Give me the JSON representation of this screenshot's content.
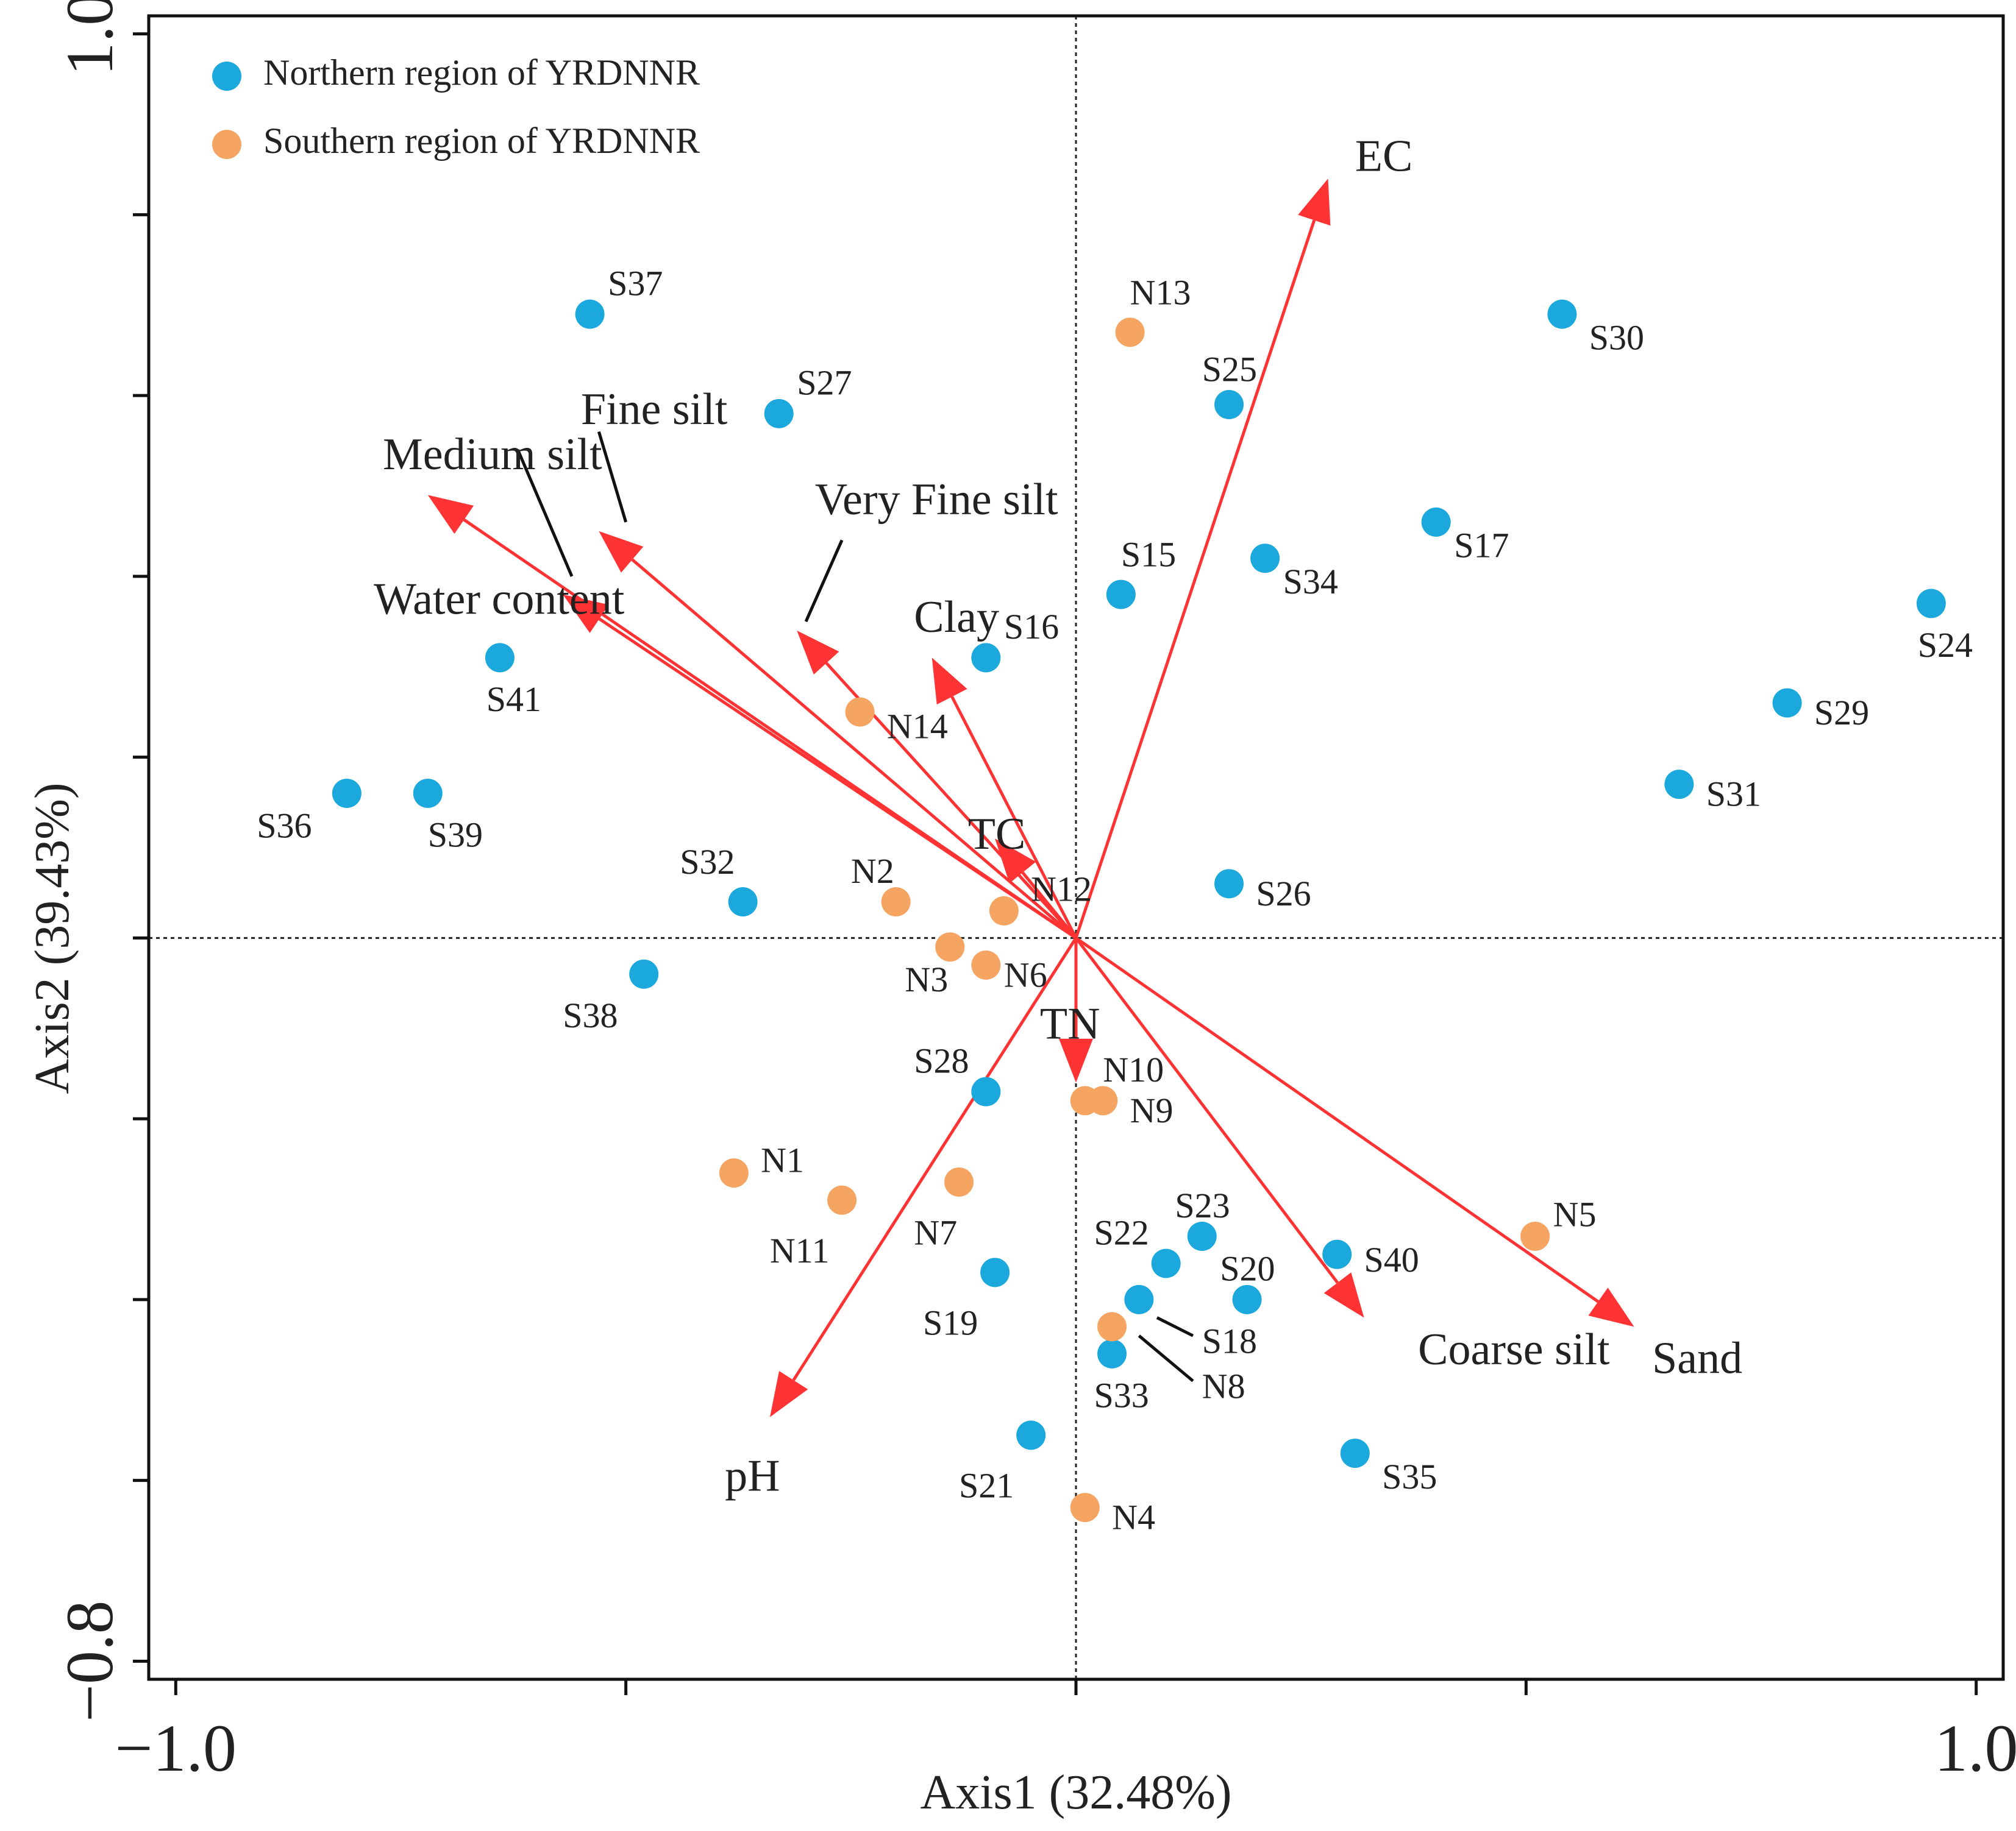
{
  "chart_data": {
    "type": "scatter",
    "title": "",
    "xlabel": "Axis1 (32.48%)",
    "ylabel": "Axis2 (39.43%)",
    "xlim": [
      -1.03,
      1.03
    ],
    "ylim": [
      -0.82,
      1.02
    ],
    "x_ticks": [
      -1.0,
      -0.5,
      0.0,
      0.5,
      1.0
    ],
    "x_tick_labels": [
      "−1.0",
      "",
      "",
      "",
      "1.0"
    ],
    "y_ticks": [
      1.0,
      0.8,
      0.6,
      0.4,
      0.2,
      0.0,
      -0.2,
      -0.4,
      -0.6,
      -0.8
    ],
    "y_tick_labels": [
      "1.0",
      "",
      "",
      "",
      "",
      "",
      "",
      "",
      "",
      "−0.8"
    ],
    "grid": false,
    "reference_lines": {
      "x": 0,
      "y": 0
    },
    "legend": {
      "position": "top-left",
      "entries": [
        {
          "label": "Northern region of YRDNNR",
          "color": "#1ba8dd"
        },
        {
          "label": "Southern region of YRDNNR",
          "color": "#f5a462"
        }
      ]
    },
    "series": [
      {
        "name": "Northern region of YRDNNR",
        "color": "#1ba8dd",
        "points": [
          {
            "label": "S37",
            "x": -0.54,
            "y": 0.69,
            "lx": 0.02,
            "ly": 0.03
          },
          {
            "label": "S27",
            "x": -0.33,
            "y": 0.58,
            "lx": 0.02,
            "ly": 0.03
          },
          {
            "label": "S41",
            "x": -0.64,
            "y": 0.31,
            "lx": -0.015,
            "ly": -0.05
          },
          {
            "label": "S36",
            "x": -0.81,
            "y": 0.16,
            "lx": -0.1,
            "ly": -0.04
          },
          {
            "label": "S39",
            "x": -0.72,
            "y": 0.16,
            "lx": 0.0,
            "ly": -0.05
          },
          {
            "label": "S32",
            "x": -0.37,
            "y": 0.04,
            "lx": -0.07,
            "ly": 0.04
          },
          {
            "label": "S38",
            "x": -0.48,
            "y": -0.04,
            "lx": -0.09,
            "ly": -0.05
          },
          {
            "label": "S16",
            "x": -0.1,
            "y": 0.31,
            "lx": 0.02,
            "ly": 0.03
          },
          {
            "label": "S15",
            "x": 0.05,
            "y": 0.38,
            "lx": 0.0,
            "ly": 0.04
          },
          {
            "label": "S25",
            "x": 0.17,
            "y": 0.59,
            "lx": -0.03,
            "ly": 0.035
          },
          {
            "label": "S34",
            "x": 0.21,
            "y": 0.42,
            "lx": 0.02,
            "ly": -0.03
          },
          {
            "label": "S17",
            "x": 0.4,
            "y": 0.46,
            "lx": 0.02,
            "ly": -0.03
          },
          {
            "label": "S30",
            "x": 0.54,
            "y": 0.69,
            "lx": 0.03,
            "ly": -0.03
          },
          {
            "label": "S24",
            "x": 0.95,
            "y": 0.37,
            "lx": -0.015,
            "ly": -0.05
          },
          {
            "label": "S29",
            "x": 0.79,
            "y": 0.26,
            "lx": 0.03,
            "ly": -0.015
          },
          {
            "label": "S31",
            "x": 0.67,
            "y": 0.17,
            "lx": 0.03,
            "ly": -0.015
          },
          {
            "label": "S26",
            "x": 0.17,
            "y": 0.06,
            "lx": 0.03,
            "ly": -0.015
          },
          {
            "label": "S28",
            "x": -0.1,
            "y": -0.17,
            "lx": -0.08,
            "ly": 0.03
          },
          {
            "label": "S19",
            "x": -0.09,
            "y": -0.37,
            "lx": -0.08,
            "ly": -0.06
          },
          {
            "label": "S21",
            "x": -0.05,
            "y": -0.55,
            "lx": -0.08,
            "ly": -0.06
          },
          {
            "label": "S22",
            "x": 0.1,
            "y": -0.36,
            "lx": -0.08,
            "ly": 0.03
          },
          {
            "label": "S23",
            "x": 0.14,
            "y": -0.33,
            "lx": -0.03,
            "ly": 0.03
          },
          {
            "label": "S20",
            "x": 0.19,
            "y": -0.4,
            "lx": -0.03,
            "ly": 0.03
          },
          {
            "label": "S18",
            "x": 0.07,
            "y": -0.4,
            "lx": 0.07,
            "ly": -0.05
          },
          {
            "label": "S33",
            "x": 0.04,
            "y": -0.46,
            "lx": -0.02,
            "ly": -0.05
          },
          {
            "label": "S40",
            "x": 0.29,
            "y": -0.35,
            "lx": 0.03,
            "ly": -0.01
          },
          {
            "label": "S35",
            "x": 0.31,
            "y": -0.57,
            "lx": 0.03,
            "ly": -0.03
          }
        ]
      },
      {
        "name": "Southern region of YRDNNR",
        "color": "#f5a462",
        "points": [
          {
            "label": "N13",
            "x": 0.06,
            "y": 0.67,
            "lx": 0.0,
            "ly": 0.04
          },
          {
            "label": "N14",
            "x": -0.24,
            "y": 0.25,
            "lx": 0.03,
            "ly": -0.02
          },
          {
            "label": "N2",
            "x": -0.2,
            "y": 0.04,
            "lx": -0.05,
            "ly": 0.03
          },
          {
            "label": "N12",
            "x": -0.08,
            "y": 0.03,
            "lx": 0.03,
            "ly": 0.02
          },
          {
            "label": "N3",
            "x": -0.14,
            "y": -0.01,
            "lx": -0.05,
            "ly": -0.04
          },
          {
            "label": "N6",
            "x": -0.1,
            "y": -0.03,
            "lx": 0.02,
            "ly": -0.015
          },
          {
            "label": "N10",
            "x": 0.01,
            "y": -0.18,
            "lx": 0.02,
            "ly": 0.03
          },
          {
            "label": "N9",
            "x": 0.03,
            "y": -0.18,
            "lx": 0.03,
            "ly": -0.015
          },
          {
            "label": "N1",
            "x": -0.38,
            "y": -0.26,
            "lx": 0.03,
            "ly": 0.01
          },
          {
            "label": "N11",
            "x": -0.26,
            "y": -0.29,
            "lx": -0.08,
            "ly": -0.06
          },
          {
            "label": "N7",
            "x": -0.13,
            "y": -0.27,
            "lx": -0.05,
            "ly": -0.06
          },
          {
            "label": "N8",
            "x": 0.04,
            "y": -0.43,
            "lx": 0.1,
            "ly": -0.07
          },
          {
            "label": "N4",
            "x": 0.01,
            "y": -0.63,
            "lx": 0.03,
            "ly": -0.015
          },
          {
            "label": "N5",
            "x": 0.51,
            "y": -0.33,
            "lx": 0.02,
            "ly": 0.02
          }
        ]
      }
    ],
    "vectors": [
      {
        "name": "EC",
        "x": 0.28,
        "y": 0.84,
        "label_x": 0.31,
        "label_y": 0.86,
        "font": "large"
      },
      {
        "name": "Medium silt",
        "x": -0.72,
        "y": 0.49,
        "label_x": -0.77,
        "label_y": 0.53,
        "font": "large"
      },
      {
        "name": "Fine silt",
        "x": -0.53,
        "y": 0.45,
        "label_x": -0.55,
        "label_y": 0.58,
        "font": "large"
      },
      {
        "name": "Very Fine silt",
        "x": -0.31,
        "y": 0.34,
        "label_x": -0.29,
        "label_y": 0.48,
        "font": "large"
      },
      {
        "name": "Water content",
        "x": -0.57,
        "y": 0.38,
        "label_x": -0.78,
        "label_y": 0.37,
        "font": "large"
      },
      {
        "name": "Clay",
        "x": -0.16,
        "y": 0.31,
        "label_x": -0.18,
        "label_y": 0.35,
        "font": "large"
      },
      {
        "name": "TC",
        "x": -0.09,
        "y": 0.11,
        "label_x": -0.12,
        "label_y": 0.11,
        "font": "large"
      },
      {
        "name": "TN",
        "x": 0.0,
        "y": -0.16,
        "label_x": -0.04,
        "label_y": -0.1,
        "font": "large"
      },
      {
        "name": "pH",
        "x": -0.34,
        "y": -0.53,
        "label_x": -0.39,
        "label_y": -0.6,
        "font": "large"
      },
      {
        "name": "Coarse silt",
        "x": 0.32,
        "y": -0.42,
        "label_x": 0.38,
        "label_y": -0.46,
        "font": "large"
      },
      {
        "name": "Sand",
        "x": 0.62,
        "y": -0.43,
        "label_x": 0.64,
        "label_y": -0.47,
        "font": "large"
      }
    ],
    "leader_lines": [
      {
        "from": [
          -0.62,
          0.54
        ],
        "to": [
          -0.56,
          0.4
        ]
      },
      {
        "from": [
          -0.53,
          0.56
        ],
        "to": [
          -0.5,
          0.46
        ]
      },
      {
        "from": [
          -0.26,
          0.44
        ],
        "to": [
          -0.3,
          0.35
        ]
      },
      {
        "from": [
          0.09,
          -0.42
        ],
        "to": [
          0.13,
          -0.44
        ]
      },
      {
        "from": [
          0.07,
          -0.44
        ],
        "to": [
          0.13,
          -0.49
        ]
      }
    ],
    "arrow_color": "#ff3333"
  }
}
